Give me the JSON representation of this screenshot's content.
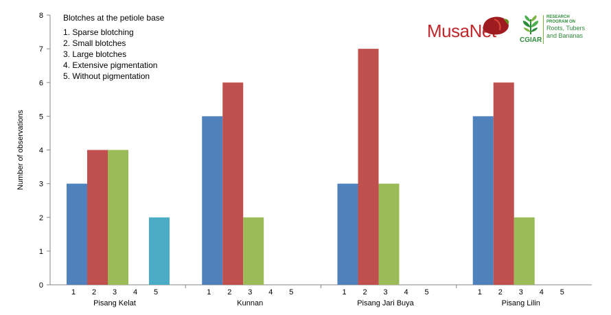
{
  "chart_data": {
    "type": "bar",
    "title": "",
    "xlabel": "",
    "ylabel": "Number of observations",
    "ylim": [
      0,
      8
    ],
    "yticks": [
      0,
      1,
      2,
      3,
      4,
      5,
      6,
      7,
      8
    ],
    "grid": false,
    "legend_text": {
      "title": "Blotches at the petiole base",
      "items": [
        "1. Sparse blotching",
        "2. Small blotches",
        "3. Large blotches",
        "4. Extensive pigmentation",
        "5. Without pigmentation"
      ],
      "placement": "top-left"
    },
    "sub_categories": [
      "1",
      "2",
      "3",
      "4",
      "5"
    ],
    "sub_colors": [
      "#4f81bd",
      "#c0504d",
      "#9bbb59",
      "#8064a2",
      "#4bacc6"
    ],
    "groups": [
      {
        "name": "Pisang Kelat",
        "values": [
          3,
          4,
          4,
          0,
          2
        ]
      },
      {
        "name": "Kunnan",
        "values": [
          5,
          6,
          2,
          0,
          0
        ]
      },
      {
        "name": "Pisang Jari Buya",
        "values": [
          3,
          7,
          3,
          0,
          0
        ]
      },
      {
        "name": "Pisang Lilin",
        "values": [
          5,
          6,
          2,
          0,
          0
        ]
      }
    ]
  },
  "logos": {
    "musanet": "MusaNet",
    "cgiar": "CGIAR",
    "crp_small_1": "RESEARCH",
    "crp_small_2": "PROGRAM ON",
    "crp_name_1": "Roots, Tubers",
    "crp_name_2": "and Bananas"
  }
}
